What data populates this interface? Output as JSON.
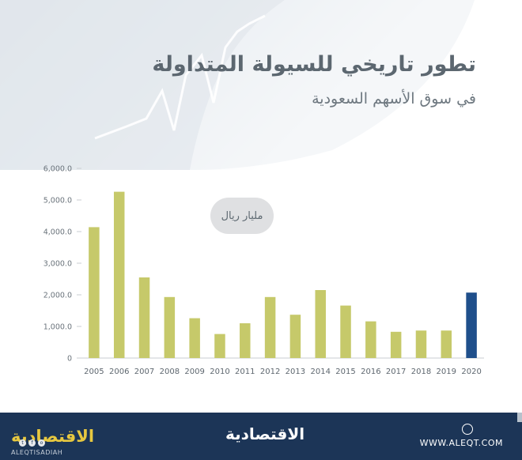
{
  "header": {
    "title": "تطور تاريخي للسيولة المتداولة",
    "subtitle": "في سوق الأسهم السعودية"
  },
  "colors": {
    "bar": "#c6c96a",
    "highlight_bar": "#1f4f8b",
    "footer_bg": "#1c3557",
    "accent_logo": "#e7c840"
  },
  "chart_data": {
    "type": "bar",
    "categories": [
      "2005",
      "2006",
      "2007",
      "2008",
      "2009",
      "2010",
      "2011",
      "2012",
      "2013",
      "2014",
      "2015",
      "2016",
      "2017",
      "2018",
      "2019",
      "2020"
    ],
    "values": [
      4140,
      5260,
      2550,
      1930,
      1260,
      760,
      1100,
      1930,
      1370,
      2150,
      1660,
      1160,
      830,
      870,
      870,
      2070
    ],
    "highlight_category": "2020",
    "y_ticks": [
      "0",
      "1,000.0",
      "2,000.0",
      "3,000.0",
      "4,000.0",
      "5,000.0",
      "6,000.0"
    ],
    "ylim": [
      0,
      6000
    ],
    "unit_label": "مليار ريال",
    "grid": false
  },
  "footer": {
    "brand": "الاقتصادية",
    "handle": "ALEQTISADIAH",
    "site": "WWW.ALEQT.COM",
    "icons": [
      "twitter-icon",
      "facebook-icon",
      "instagram-icon",
      "globe-icon"
    ]
  }
}
